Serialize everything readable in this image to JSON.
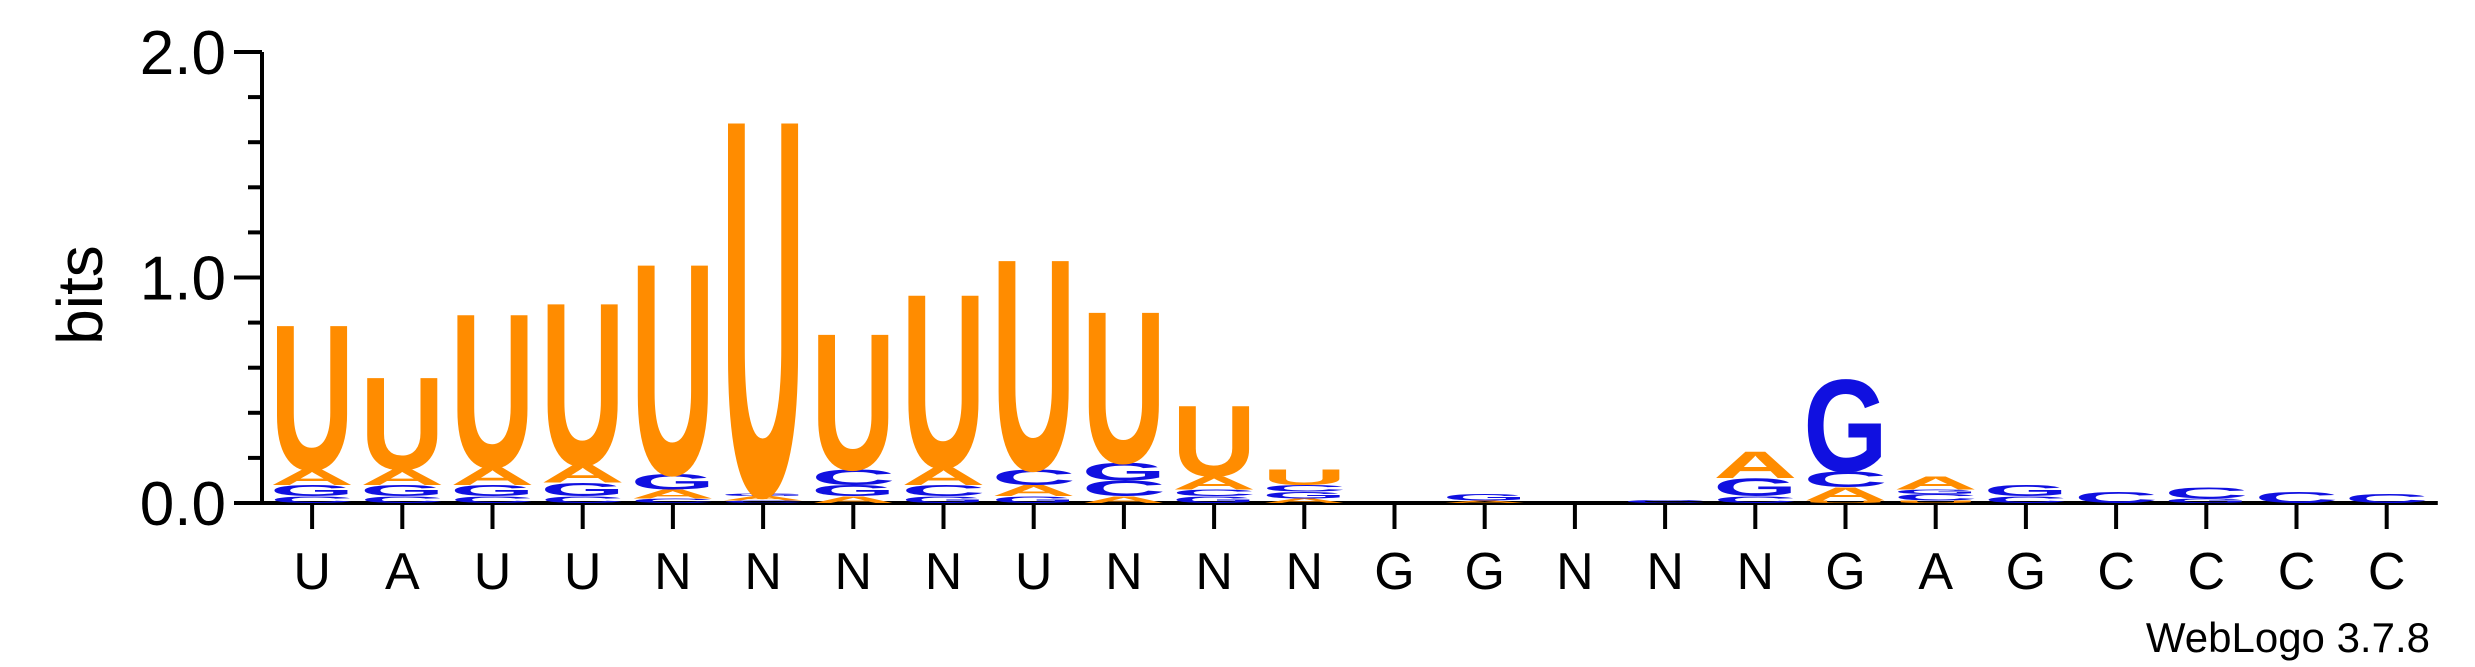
{
  "chart_data": {
    "type": "sequence-logo",
    "title": "",
    "xlabel": "",
    "ylabel": "bits",
    "ylim": [
      0,
      2
    ],
    "yticks": [
      {
        "value": 0,
        "label": "0.0"
      },
      {
        "value": 1,
        "label": "1.0"
      },
      {
        "value": 2,
        "label": "2.0"
      }
    ],
    "colors": {
      "U": "#ff8c00",
      "A": "#ff8c00",
      "G": "#1010e0",
      "C": "#1010e0"
    },
    "positions": [
      {
        "label": "U",
        "stack": [
          {
            "letter": "C",
            "height": 0.03
          },
          {
            "letter": "G",
            "height": 0.05
          },
          {
            "letter": "A",
            "height": 0.07
          },
          {
            "letter": "U",
            "height": 0.66
          }
        ]
      },
      {
        "label": "A",
        "stack": [
          {
            "letter": "C",
            "height": 0.03
          },
          {
            "letter": "G",
            "height": 0.05
          },
          {
            "letter": "A",
            "height": 0.07
          },
          {
            "letter": "U",
            "height": 0.42
          }
        ]
      },
      {
        "label": "U",
        "stack": [
          {
            "letter": "C",
            "height": 0.03
          },
          {
            "letter": "G",
            "height": 0.05
          },
          {
            "letter": "A",
            "height": 0.08
          },
          {
            "letter": "U",
            "height": 0.7
          }
        ]
      },
      {
        "label": "U",
        "stack": [
          {
            "letter": "C",
            "height": 0.03
          },
          {
            "letter": "G",
            "height": 0.06
          },
          {
            "letter": "A",
            "height": 0.08
          },
          {
            "letter": "U",
            "height": 0.74
          }
        ]
      },
      {
        "label": "N",
        "stack": [
          {
            "letter": "C",
            "height": 0.02
          },
          {
            "letter": "A",
            "height": 0.04
          },
          {
            "letter": "G",
            "height": 0.07
          },
          {
            "letter": "U",
            "height": 0.96
          }
        ]
      },
      {
        "label": "N",
        "stack": [
          {
            "letter": "C",
            "height": 0.01
          },
          {
            "letter": "A",
            "height": 0.02
          },
          {
            "letter": "G",
            "height": 0.01
          },
          {
            "letter": "U",
            "height": 1.71
          }
        ]
      },
      {
        "label": "N",
        "stack": [
          {
            "letter": "A",
            "height": 0.03
          },
          {
            "letter": "G",
            "height": 0.05
          },
          {
            "letter": "C",
            "height": 0.07
          },
          {
            "letter": "U",
            "height": 0.62
          }
        ]
      },
      {
        "label": "N",
        "stack": [
          {
            "letter": "G",
            "height": 0.03
          },
          {
            "letter": "C",
            "height": 0.05
          },
          {
            "letter": "A",
            "height": 0.08
          },
          {
            "letter": "U",
            "height": 0.79
          }
        ]
      },
      {
        "label": "U",
        "stack": [
          {
            "letter": "G",
            "height": 0.03
          },
          {
            "letter": "A",
            "height": 0.05
          },
          {
            "letter": "C",
            "height": 0.07
          },
          {
            "letter": "U",
            "height": 0.96
          }
        ]
      },
      {
        "label": "N",
        "stack": [
          {
            "letter": "A",
            "height": 0.03
          },
          {
            "letter": "C",
            "height": 0.07
          },
          {
            "letter": "G",
            "height": 0.08
          },
          {
            "letter": "U",
            "height": 0.69
          }
        ]
      },
      {
        "label": "N",
        "stack": [
          {
            "letter": "G",
            "height": 0.03
          },
          {
            "letter": "C",
            "height": 0.03
          },
          {
            "letter": "A",
            "height": 0.06
          },
          {
            "letter": "U",
            "height": 0.32
          }
        ]
      },
      {
        "label": "N",
        "stack": [
          {
            "letter": "A",
            "height": 0.02
          },
          {
            "letter": "G",
            "height": 0.03
          },
          {
            "letter": "C",
            "height": 0.03
          },
          {
            "letter": "U",
            "height": 0.07
          }
        ]
      },
      {
        "label": "G",
        "stack": []
      },
      {
        "label": "G",
        "stack": [
          {
            "letter": "A",
            "height": 0.01
          },
          {
            "letter": "G",
            "height": 0.03
          }
        ]
      },
      {
        "label": "N",
        "stack": []
      },
      {
        "label": "N",
        "stack": [
          {
            "letter": "C",
            "height": 0.015
          }
        ]
      },
      {
        "label": "N",
        "stack": [
          {
            "letter": "C",
            "height": 0.03
          },
          {
            "letter": "G",
            "height": 0.08
          },
          {
            "letter": "A",
            "height": 0.12
          }
        ]
      },
      {
        "label": "G",
        "stack": [
          {
            "letter": "U",
            "height": 0.01
          },
          {
            "letter": "A",
            "height": 0.06
          },
          {
            "letter": "C",
            "height": 0.07
          },
          {
            "letter": "G",
            "height": 0.42
          }
        ]
      },
      {
        "label": "A",
        "stack": [
          {
            "letter": "U",
            "height": 0.01
          },
          {
            "letter": "C",
            "height": 0.03
          },
          {
            "letter": "G",
            "height": 0.02
          },
          {
            "letter": "A",
            "height": 0.06
          }
        ]
      },
      {
        "label": "G",
        "stack": [
          {
            "letter": "C",
            "height": 0.03
          },
          {
            "letter": "G",
            "height": 0.05
          }
        ]
      },
      {
        "label": "C",
        "stack": [
          {
            "letter": "C",
            "height": 0.05
          }
        ]
      },
      {
        "label": "C",
        "stack": [
          {
            "letter": "G",
            "height": 0.02
          },
          {
            "letter": "C",
            "height": 0.05
          }
        ]
      },
      {
        "label": "C",
        "stack": [
          {
            "letter": "C",
            "height": 0.05
          }
        ]
      },
      {
        "label": "C",
        "stack": [
          {
            "letter": "C",
            "height": 0.04
          }
        ]
      }
    ]
  },
  "footer": {
    "version_text": "WebLogo 3.7.8"
  }
}
